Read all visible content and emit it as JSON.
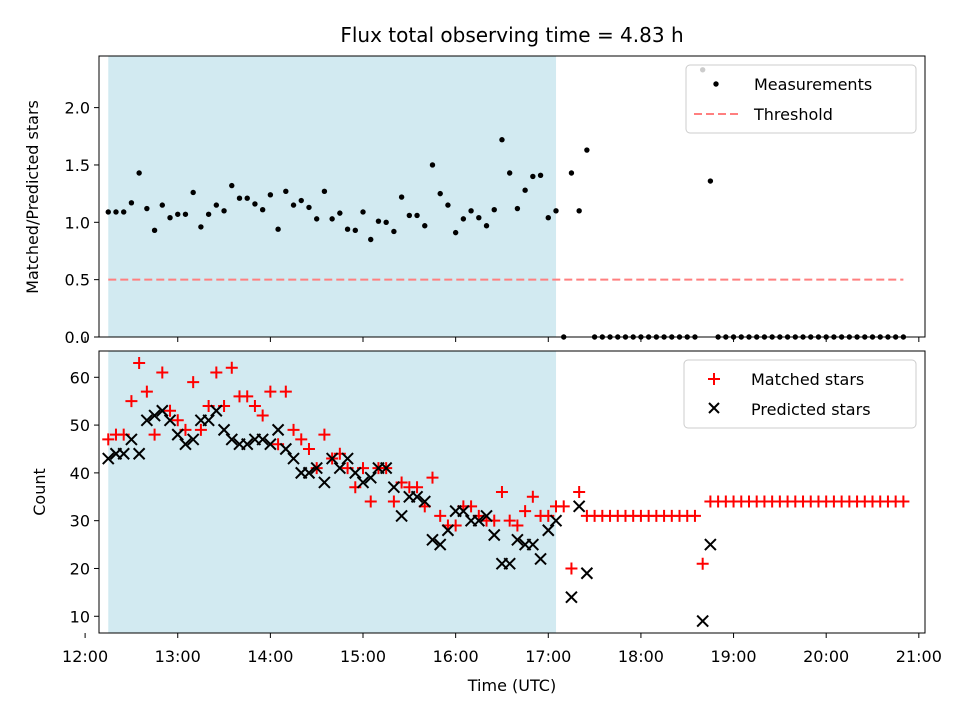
{
  "title": "Flux total observing time = 4.83 h",
  "colors": {
    "shade": "#add8e6",
    "matched": "#ff0000",
    "predicted": "#000000",
    "threshold": "#ff7f7f",
    "measurements": "#000000"
  },
  "chart_data": [
    {
      "type": "scatter",
      "panel": "top",
      "ylabel": "Matched/Predicted stars",
      "xlim": [
        "12:09",
        "21:04"
      ],
      "ylim": [
        0,
        2.45
      ],
      "yticks": [
        "0.0",
        "0.5",
        "1.0",
        "1.5",
        "2.0"
      ],
      "shaded_interval": [
        "12:15",
        "17:05"
      ],
      "legend_position": "upper right",
      "legend": [
        {
          "label": "Measurements",
          "marker": "dot"
        },
        {
          "label": "Threshold",
          "marker": "dashed-line"
        }
      ],
      "threshold": {
        "value": 0.5,
        "x": [
          "12:15",
          "20:50"
        ]
      },
      "measurements": [
        [
          "12:15",
          1.09
        ],
        [
          "12:20",
          1.09
        ],
        [
          "12:25",
          1.09
        ],
        [
          "12:30",
          1.17
        ],
        [
          "12:35",
          1.43
        ],
        [
          "12:40",
          1.12
        ],
        [
          "12:45",
          0.93
        ],
        [
          "12:50",
          1.15
        ],
        [
          "12:55",
          1.04
        ],
        [
          "13:00",
          1.07
        ],
        [
          "13:05",
          1.07
        ],
        [
          "13:10",
          1.26
        ],
        [
          "13:15",
          0.96
        ],
        [
          "13:20",
          1.07
        ],
        [
          "13:25",
          1.15
        ],
        [
          "13:30",
          1.1
        ],
        [
          "13:35",
          1.32
        ],
        [
          "13:40",
          1.21
        ],
        [
          "13:45",
          1.21
        ],
        [
          "13:50",
          1.16
        ],
        [
          "13:55",
          1.11
        ],
        [
          "14:00",
          1.24
        ],
        [
          "14:05",
          0.94
        ],
        [
          "14:10",
          1.27
        ],
        [
          "14:15",
          1.15
        ],
        [
          "14:20",
          1.19
        ],
        [
          "14:25",
          1.13
        ],
        [
          "14:30",
          1.03
        ],
        [
          "14:35",
          1.27
        ],
        [
          "14:40",
          1.03
        ],
        [
          "14:45",
          1.08
        ],
        [
          "14:50",
          0.94
        ],
        [
          "14:55",
          0.93
        ],
        [
          "15:00",
          1.09
        ],
        [
          "15:05",
          0.85
        ],
        [
          "15:10",
          1.01
        ],
        [
          "15:15",
          1.0
        ],
        [
          "15:20",
          0.92
        ],
        [
          "15:25",
          1.22
        ],
        [
          "15:30",
          1.06
        ],
        [
          "15:35",
          1.06
        ],
        [
          "15:40",
          0.97
        ],
        [
          "15:45",
          1.5
        ],
        [
          "15:50",
          1.25
        ],
        [
          "15:55",
          1.15
        ],
        [
          "16:00",
          0.91
        ],
        [
          "16:05",
          1.03
        ],
        [
          "16:10",
          1.1
        ],
        [
          "16:15",
          1.04
        ],
        [
          "16:20",
          0.97
        ],
        [
          "16:25",
          1.11
        ],
        [
          "16:30",
          1.72
        ],
        [
          "16:35",
          1.43
        ],
        [
          "16:40",
          1.12
        ],
        [
          "16:45",
          1.28
        ],
        [
          "16:50",
          1.4
        ],
        [
          "16:55",
          1.41
        ],
        [
          "17:00",
          1.04
        ],
        [
          "17:05",
          1.1
        ],
        [
          "17:10",
          0.0
        ],
        [
          "17:15",
          1.43
        ],
        [
          "17:20",
          1.1
        ],
        [
          "17:25",
          1.63
        ],
        [
          "17:30",
          0.0
        ],
        [
          "17:35",
          0.0
        ],
        [
          "17:40",
          0.0
        ],
        [
          "17:45",
          0.0
        ],
        [
          "17:50",
          0.0
        ],
        [
          "17:55",
          0.0
        ],
        [
          "18:00",
          0.0
        ],
        [
          "18:05",
          0.0
        ],
        [
          "18:10",
          0.0
        ],
        [
          "18:15",
          0.0
        ],
        [
          "18:20",
          0.0
        ],
        [
          "18:25",
          0.0
        ],
        [
          "18:30",
          0.0
        ],
        [
          "18:35",
          0.0
        ],
        [
          "18:40",
          2.33
        ],
        [
          "18:45",
          1.36
        ],
        [
          "18:50",
          0.0
        ],
        [
          "18:55",
          0.0
        ],
        [
          "19:00",
          0.0
        ],
        [
          "19:05",
          0.0
        ],
        [
          "19:10",
          0.0
        ],
        [
          "19:15",
          0.0
        ],
        [
          "19:20",
          0.0
        ],
        [
          "19:25",
          0.0
        ],
        [
          "19:30",
          0.0
        ],
        [
          "19:35",
          0.0
        ],
        [
          "19:40",
          0.0
        ],
        [
          "19:45",
          0.0
        ],
        [
          "19:50",
          0.0
        ],
        [
          "19:55",
          0.0
        ],
        [
          "20:00",
          0.0
        ],
        [
          "20:05",
          0.0
        ],
        [
          "20:10",
          0.0
        ],
        [
          "20:15",
          0.0
        ],
        [
          "20:20",
          0.0
        ],
        [
          "20:25",
          0.0
        ],
        [
          "20:30",
          0.0
        ],
        [
          "20:35",
          0.0
        ],
        [
          "20:40",
          0.0
        ],
        [
          "20:45",
          0.0
        ],
        [
          "20:50",
          0.0
        ]
      ]
    },
    {
      "type": "scatter",
      "panel": "bottom",
      "xlabel": "Time (UTC)",
      "ylabel": "Count",
      "xlim": [
        "12:09",
        "21:04"
      ],
      "ylim": [
        6.5,
        65.5
      ],
      "xticks": [
        "12:00",
        "13:00",
        "14:00",
        "15:00",
        "16:00",
        "17:00",
        "18:00",
        "19:00",
        "20:00",
        "21:00"
      ],
      "yticks": [
        "10",
        "20",
        "30",
        "40",
        "50",
        "60"
      ],
      "shaded_interval": [
        "12:15",
        "17:05"
      ],
      "legend_position": "upper right",
      "series": [
        {
          "name": "Matched stars",
          "marker": "+",
          "points": [
            [
              "12:15",
              47
            ],
            [
              "12:20",
              48
            ],
            [
              "12:25",
              48
            ],
            [
              "12:30",
              55
            ],
            [
              "12:35",
              63
            ],
            [
              "12:40",
              57
            ],
            [
              "12:45",
              48
            ],
            [
              "12:50",
              61
            ],
            [
              "12:55",
              53
            ],
            [
              "13:00",
              51
            ],
            [
              "13:05",
              49
            ],
            [
              "13:10",
              59
            ],
            [
              "13:15",
              49
            ],
            [
              "13:20",
              54
            ],
            [
              "13:25",
              61
            ],
            [
              "13:30",
              54
            ],
            [
              "13:35",
              62
            ],
            [
              "13:40",
              56
            ],
            [
              "13:45",
              56
            ],
            [
              "13:50",
              54
            ],
            [
              "13:55",
              52
            ],
            [
              "14:00",
              57
            ],
            [
              "14:05",
              46
            ],
            [
              "14:10",
              57
            ],
            [
              "14:15",
              49
            ],
            [
              "14:20",
              47
            ],
            [
              "14:25",
              45
            ],
            [
              "14:30",
              41
            ],
            [
              "14:35",
              48
            ],
            [
              "14:40",
              43
            ],
            [
              "14:45",
              44
            ],
            [
              "14:50",
              41
            ],
            [
              "14:55",
              37
            ],
            [
              "15:00",
              41
            ],
            [
              "15:05",
              34
            ],
            [
              "15:10",
              41
            ],
            [
              "15:15",
              41
            ],
            [
              "15:20",
              34
            ],
            [
              "15:25",
              38
            ],
            [
              "15:30",
              37
            ],
            [
              "15:35",
              37
            ],
            [
              "15:40",
              33
            ],
            [
              "15:45",
              39
            ],
            [
              "15:50",
              31
            ],
            [
              "15:55",
              29
            ],
            [
              "16:00",
              29
            ],
            [
              "16:05",
              33
            ],
            [
              "16:10",
              33
            ],
            [
              "16:15",
              31
            ],
            [
              "16:20",
              30
            ],
            [
              "16:25",
              30
            ],
            [
              "16:30",
              36
            ],
            [
              "16:35",
              30
            ],
            [
              "16:40",
              29
            ],
            [
              "16:45",
              32
            ],
            [
              "16:50",
              35
            ],
            [
              "16:55",
              31
            ],
            [
              "17:00",
              31
            ],
            [
              "17:05",
              33
            ],
            [
              "17:10",
              33
            ],
            [
              "17:15",
              20
            ],
            [
              "17:20",
              36
            ],
            [
              "17:25",
              31
            ],
            [
              "17:30",
              31
            ],
            [
              "17:35",
              31
            ],
            [
              "17:40",
              31
            ],
            [
              "17:45",
              31
            ],
            [
              "17:50",
              31
            ],
            [
              "17:55",
              31
            ],
            [
              "18:00",
              31
            ],
            [
              "18:05",
              31
            ],
            [
              "18:10",
              31
            ],
            [
              "18:15",
              31
            ],
            [
              "18:20",
              31
            ],
            [
              "18:25",
              31
            ],
            [
              "18:30",
              31
            ],
            [
              "18:35",
              31
            ],
            [
              "18:40",
              21
            ],
            [
              "18:45",
              34
            ],
            [
              "18:50",
              34
            ],
            [
              "18:55",
              34
            ],
            [
              "19:00",
              34
            ],
            [
              "19:05",
              34
            ],
            [
              "19:10",
              34
            ],
            [
              "19:15",
              34
            ],
            [
              "19:20",
              34
            ],
            [
              "19:25",
              34
            ],
            [
              "19:30",
              34
            ],
            [
              "19:35",
              34
            ],
            [
              "19:40",
              34
            ],
            [
              "19:45",
              34
            ],
            [
              "19:50",
              34
            ],
            [
              "19:55",
              34
            ],
            [
              "20:00",
              34
            ],
            [
              "20:05",
              34
            ],
            [
              "20:10",
              34
            ],
            [
              "20:15",
              34
            ],
            [
              "20:20",
              34
            ],
            [
              "20:25",
              34
            ],
            [
              "20:30",
              34
            ],
            [
              "20:35",
              34
            ],
            [
              "20:40",
              34
            ],
            [
              "20:45",
              34
            ],
            [
              "20:50",
              34
            ]
          ]
        },
        {
          "name": "Predicted stars",
          "marker": "x",
          "points": [
            [
              "12:15",
              43
            ],
            [
              "12:20",
              44
            ],
            [
              "12:25",
              44
            ],
            [
              "12:30",
              47
            ],
            [
              "12:35",
              44
            ],
            [
              "12:40",
              51
            ],
            [
              "12:45",
              52
            ],
            [
              "12:50",
              53
            ],
            [
              "12:55",
              51
            ],
            [
              "13:00",
              48
            ],
            [
              "13:05",
              46
            ],
            [
              "13:10",
              47
            ],
            [
              "13:15",
              51
            ],
            [
              "13:20",
              51
            ],
            [
              "13:25",
              53
            ],
            [
              "13:30",
              49
            ],
            [
              "13:35",
              47
            ],
            [
              "13:40",
              46
            ],
            [
              "13:45",
              46
            ],
            [
              "13:50",
              47
            ],
            [
              "13:55",
              47
            ],
            [
              "14:00",
              46
            ],
            [
              "14:05",
              49
            ],
            [
              "14:10",
              45
            ],
            [
              "14:15",
              43
            ],
            [
              "14:20",
              40
            ],
            [
              "14:25",
              40
            ],
            [
              "14:30",
              41
            ],
            [
              "14:35",
              38
            ],
            [
              "14:40",
              43
            ],
            [
              "14:45",
              41
            ],
            [
              "14:50",
              43
            ],
            [
              "14:55",
              40
            ],
            [
              "15:00",
              38
            ],
            [
              "15:05",
              39
            ],
            [
              "15:10",
              41
            ],
            [
              "15:15",
              41
            ],
            [
              "15:20",
              37
            ],
            [
              "15:25",
              31
            ],
            [
              "15:30",
              35
            ],
            [
              "15:35",
              35
            ],
            [
              "15:40",
              34
            ],
            [
              "15:45",
              26
            ],
            [
              "15:50",
              25
            ],
            [
              "15:55",
              28
            ],
            [
              "16:00",
              32
            ],
            [
              "16:05",
              32
            ],
            [
              "16:10",
              30
            ],
            [
              "16:15",
              30
            ],
            [
              "16:20",
              31
            ],
            [
              "16:25",
              27
            ],
            [
              "16:30",
              21
            ],
            [
              "16:35",
              21
            ],
            [
              "16:40",
              26
            ],
            [
              "16:45",
              25
            ],
            [
              "16:50",
              25
            ],
            [
              "16:55",
              22
            ],
            [
              "17:00",
              28
            ],
            [
              "17:05",
              30
            ],
            [
              "17:15",
              14
            ],
            [
              "17:20",
              33
            ],
            [
              "17:25",
              19
            ],
            [
              "18:40",
              9
            ],
            [
              "18:45",
              25
            ]
          ]
        }
      ]
    }
  ]
}
